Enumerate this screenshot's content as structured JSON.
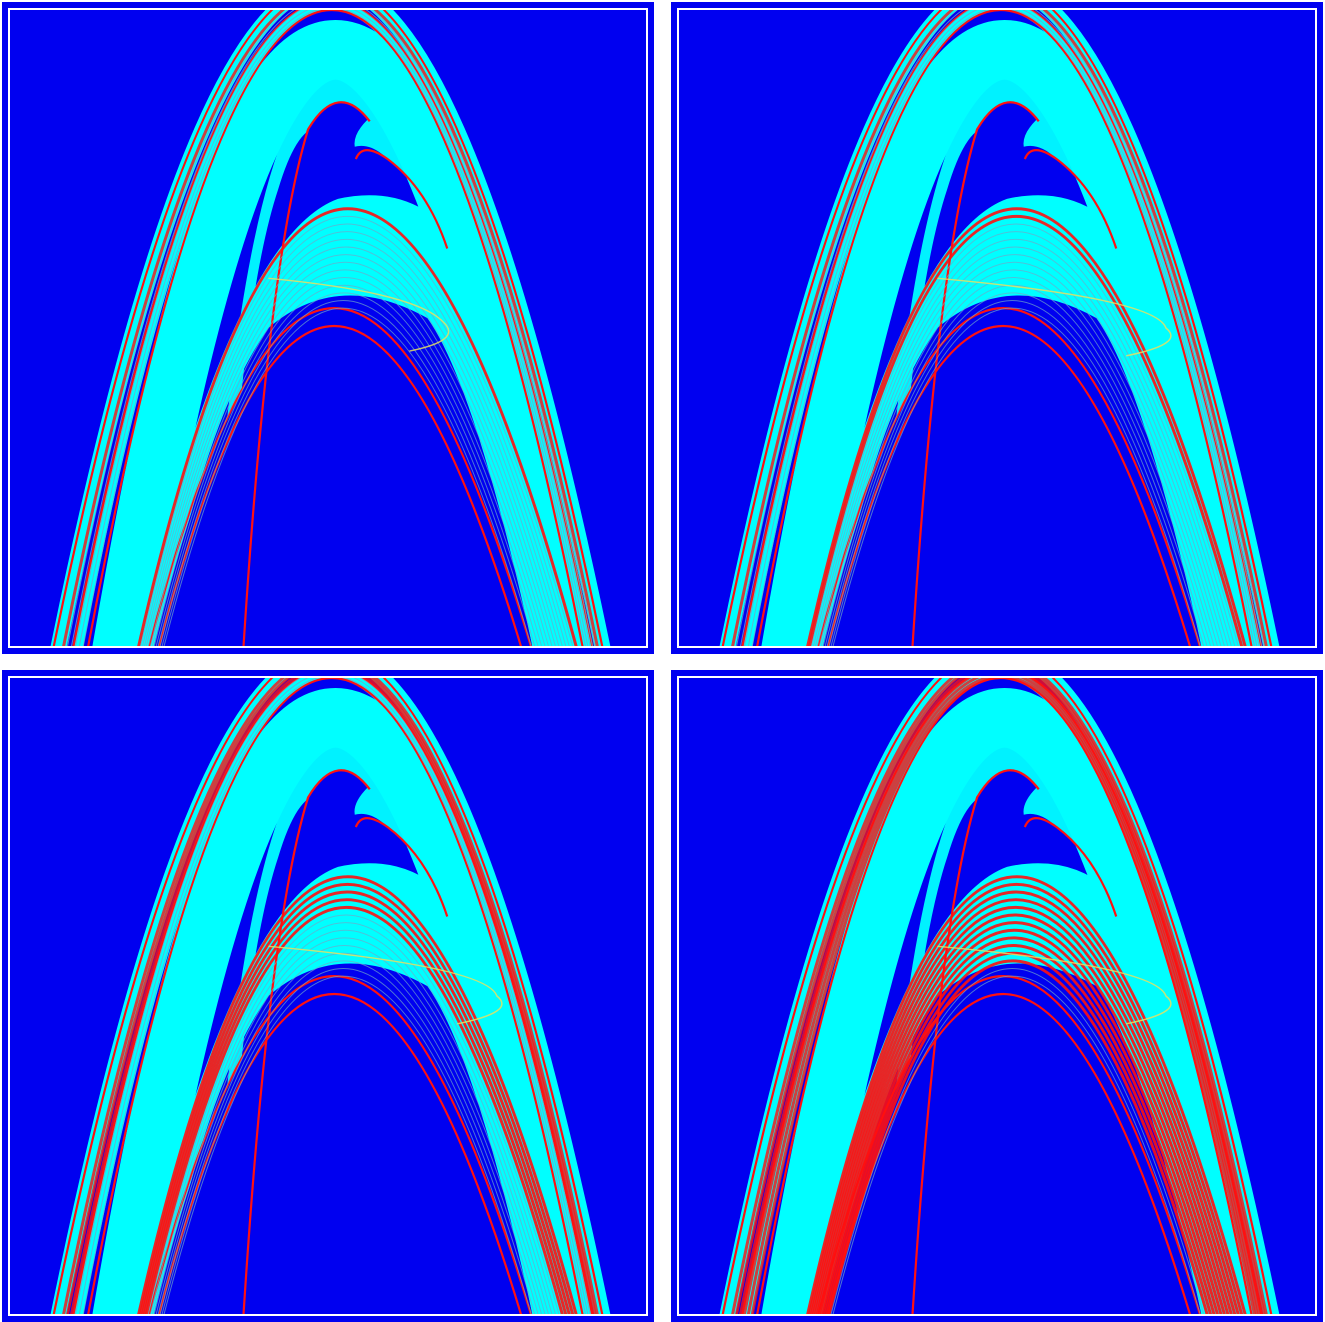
{
  "figure": {
    "panel_count": 4,
    "colors": {
      "background": "#0000f0",
      "fill": "#00ffff",
      "boundary": "#ff1010",
      "filament": "#6fa8c8",
      "highlight": "#e8e060",
      "frame": "#ffffff"
    },
    "panels": [
      {
        "id": "panel-1",
        "red_density": 0.05,
        "highlight_size": 0.4
      },
      {
        "id": "panel-2",
        "red_density": 0.08,
        "highlight_size": 1.0
      },
      {
        "id": "panel-3",
        "red_density": 0.35,
        "highlight_size": 1.0
      },
      {
        "id": "panel-4",
        "red_density": 0.85,
        "highlight_size": 1.0
      }
    ]
  }
}
